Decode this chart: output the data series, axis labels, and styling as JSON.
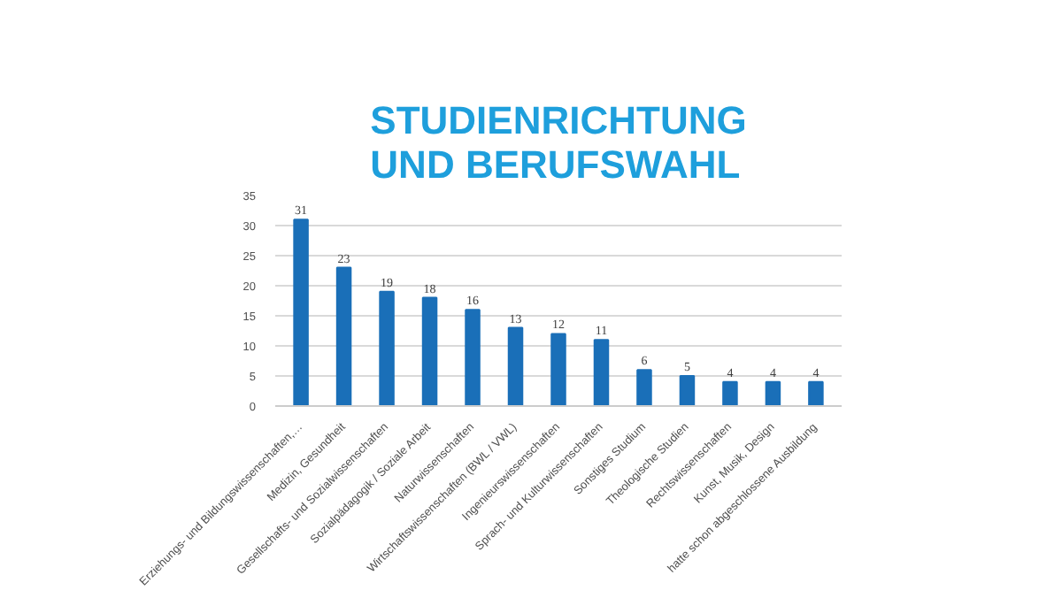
{
  "chart_data": {
    "type": "bar",
    "title": "STUDIENRICHTUNG\nUND BERUFSWAHL",
    "categories": [
      "Erziehungs- und Bildungswissenschaften,…",
      "Medizin, Gesundheit",
      "Gesellschafts- und Sozialwissenschaften",
      "Sozialpädagogik / Soziale Arbeit",
      "Naturwissenschaften",
      "Wirtschaftswissenschaften (BWL / VWL)",
      "Ingenieurswissenschaften",
      "Sprach- und Kulturwissenschaften",
      "Sonstiges Studium",
      "Theologische Studien",
      "Rechtswissenschaften",
      "Kunst, Musik, Design",
      "hatte schon abgeschlossene Ausbildung"
    ],
    "values": [
      31,
      23,
      19,
      18,
      16,
      13,
      12,
      11,
      6,
      5,
      4,
      4,
      4
    ],
    "color": "#1a6fb8",
    "ylim": [
      0,
      35
    ],
    "yticks": [
      0,
      5,
      10,
      15,
      20,
      25,
      30,
      35
    ],
    "grid": "y",
    "data_labels": true
  }
}
